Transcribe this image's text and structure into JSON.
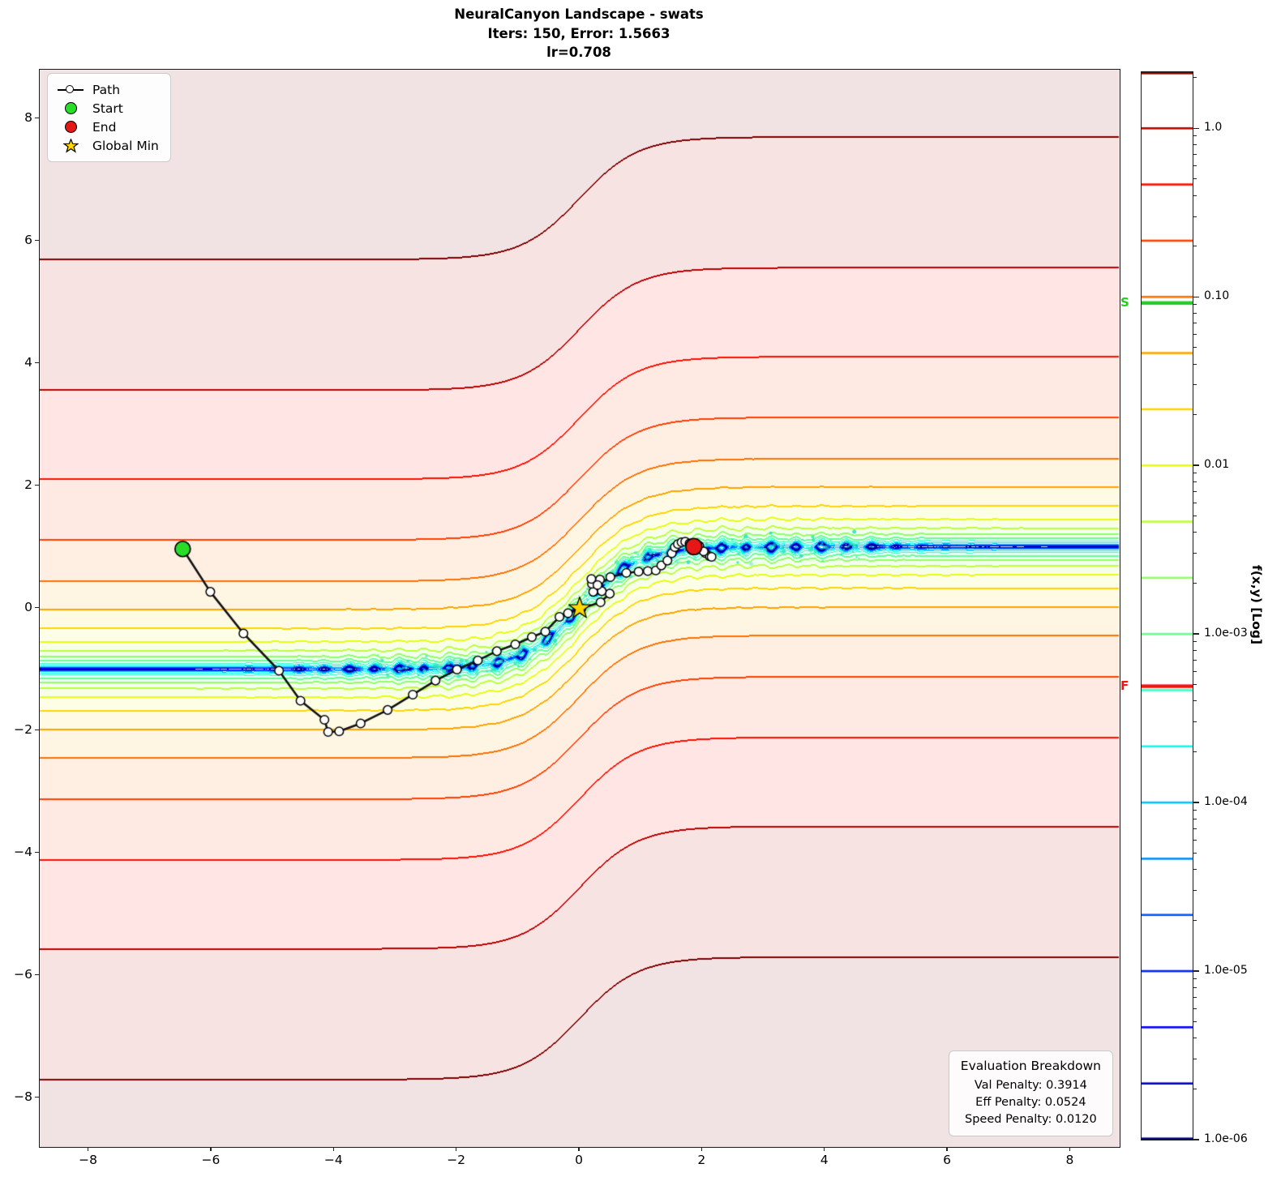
{
  "title": {
    "line1": "NeuralCanyon Landscape - swats",
    "line2": "Iters: 150, Error: 1.5663",
    "line3": "lr=0.708"
  },
  "legend": {
    "items": [
      {
        "label": "Path",
        "marker": "line-circle",
        "color": "#000000"
      },
      {
        "label": "Start",
        "marker": "circle",
        "color": "#28dc28"
      },
      {
        "label": "End",
        "marker": "circle",
        "color": "#e61717"
      },
      {
        "label": "Global Min",
        "marker": "star",
        "color": "#ffd700"
      }
    ]
  },
  "eval_box": {
    "title": "Evaluation Breakdown",
    "lines": [
      "Val Penalty: 0.3914",
      "Eff Penalty: 0.0524",
      "Speed Penalty: 0.0120"
    ]
  },
  "axes": {
    "xlim": [
      -8.8,
      8.8
    ],
    "ylim": [
      -8.8,
      8.8
    ],
    "x_ticks": [
      {
        "v": -8,
        "label": "−8"
      },
      {
        "v": -6,
        "label": "−6"
      },
      {
        "v": -4,
        "label": "−4"
      },
      {
        "v": -2,
        "label": "−2"
      },
      {
        "v": 0,
        "label": "0"
      },
      {
        "v": 2,
        "label": "2"
      },
      {
        "v": 4,
        "label": "4"
      },
      {
        "v": 6,
        "label": "6"
      },
      {
        "v": 8,
        "label": "8"
      }
    ],
    "y_ticks": [
      {
        "v": 8,
        "label": "8"
      },
      {
        "v": 6,
        "label": "6"
      },
      {
        "v": 4,
        "label": "4"
      },
      {
        "v": 2,
        "label": "2"
      },
      {
        "v": 0,
        "label": "0"
      },
      {
        "v": -2,
        "label": "−2"
      },
      {
        "v": -4,
        "label": "−4"
      },
      {
        "v": -6,
        "label": "−6"
      },
      {
        "v": -8,
        "label": "−8"
      }
    ]
  },
  "colorbar": {
    "label": "f(x,y) [Log]",
    "vmin": 1e-06,
    "vmax": 2.154,
    "ticks": [
      {
        "v": 1.0,
        "label": "1.0"
      },
      {
        "v": 0.1,
        "label": "0.10"
      },
      {
        "v": 0.01,
        "label": "0.01"
      },
      {
        "v": 0.001,
        "label": "1.0e-03"
      },
      {
        "v": 0.0001,
        "label": "1.0e-04"
      },
      {
        "v": 1e-05,
        "label": "1.0e-05"
      },
      {
        "v": 1e-06,
        "label": "1.0e-06"
      }
    ],
    "start_marker": {
      "label": "S",
      "value": 0.092,
      "color": "#22cc22"
    },
    "final_marker": {
      "label": "F",
      "value": 0.00049,
      "color": "#ee1512"
    }
  },
  "chart_data": {
    "type": "contour",
    "title": "NeuralCanyon Landscape - swats",
    "scale": "log",
    "colormap": "jet",
    "xlim": [
      -8.8,
      8.8
    ],
    "ylim": [
      -8.8,
      8.8
    ],
    "canyon": "y = tanh(1.05x)",
    "f": "f(x,y) ~ 0.048*(y - tanh(1.05x))^2 with small ripple noise near the canyon floor",
    "levels": [
      1e-06,
      2.154e-06,
      4.642e-06,
      1e-05,
      2.154e-05,
      4.642e-05,
      0.0001,
      0.0002154,
      0.0004642,
      0.001,
      0.002154,
      0.004642,
      0.01,
      0.02154,
      0.04642,
      0.1,
      0.2154,
      0.4642,
      1.0,
      2.154
    ],
    "level_colors": [
      "#000080",
      "#0000bd",
      "#0000fa",
      "#0021ff",
      "#0057ff",
      "#008dff",
      "#00c3ff",
      "#10f8e8",
      "#3affbc",
      "#65ff91",
      "#90ff65",
      "#bcff3a",
      "#e7ff0f",
      "#ffd500",
      "#ffa300",
      "#ff7100",
      "#ff4000",
      "#ff0f00",
      "#bc0000",
      "#7f0000"
    ],
    "fill_alpha": 0.11,
    "start": [
      -6.47,
      0.97
    ],
    "end": [
      1.86,
      1.01
    ],
    "global_min": [
      0,
      0
    ],
    "path": [
      [
        -6.47,
        0.97
      ],
      [
        -6.02,
        0.27
      ],
      [
        -5.48,
        -0.41
      ],
      [
        -4.9,
        -1.02
      ],
      [
        -4.55,
        -1.51
      ],
      [
        -4.16,
        -1.82
      ],
      [
        -4.1,
        -2.02
      ],
      [
        -3.92,
        -2.01
      ],
      [
        -3.57,
        -1.88
      ],
      [
        -3.13,
        -1.66
      ],
      [
        -2.72,
        -1.41
      ],
      [
        -2.35,
        -1.18
      ],
      [
        -2.0,
        -1.0
      ],
      [
        -1.66,
        -0.85
      ],
      [
        -1.35,
        -0.7
      ],
      [
        -1.05,
        -0.59
      ],
      [
        -0.78,
        -0.47
      ],
      [
        -0.56,
        -0.38
      ],
      [
        -0.33,
        -0.14
      ],
      [
        -0.19,
        -0.08
      ],
      [
        0.03,
        0.0
      ],
      [
        0.34,
        0.1
      ],
      [
        0.49,
        0.24
      ],
      [
        0.36,
        0.28
      ],
      [
        0.22,
        0.27
      ],
      [
        0.2,
        0.4
      ],
      [
        0.33,
        0.47
      ],
      [
        0.19,
        0.48
      ],
      [
        0.29,
        0.38
      ],
      [
        0.5,
        0.51
      ],
      [
        0.76,
        0.58
      ],
      [
        0.96,
        0.6
      ],
      [
        1.11,
        0.61
      ],
      [
        1.24,
        0.62
      ],
      [
        1.33,
        0.7
      ],
      [
        1.43,
        0.78
      ],
      [
        1.5,
        0.9
      ],
      [
        1.55,
        1.0
      ],
      [
        1.6,
        1.05
      ],
      [
        1.66,
        1.08
      ],
      [
        1.72,
        1.09
      ],
      [
        1.79,
        1.06
      ],
      [
        1.95,
        1.02
      ],
      [
        2.05,
        0.9
      ],
      [
        2.12,
        0.85
      ],
      [
        2.15,
        0.84
      ],
      [
        2.02,
        0.93
      ],
      [
        1.86,
        1.01
      ]
    ],
    "scatter": {
      "color": "#2ce4c4",
      "seed": 42,
      "count": 260,
      "x_min": -3.3,
      "x_max": 4.6,
      "y_sigma": 0.1,
      "r_min": 0.8,
      "r_max": 2.6
    },
    "marker_colors": {
      "start": "#28dc28",
      "end": "#e61717",
      "global_min": "#ffd700",
      "path_line": "#111111",
      "path_marker_fill": "#ffffff"
    }
  }
}
